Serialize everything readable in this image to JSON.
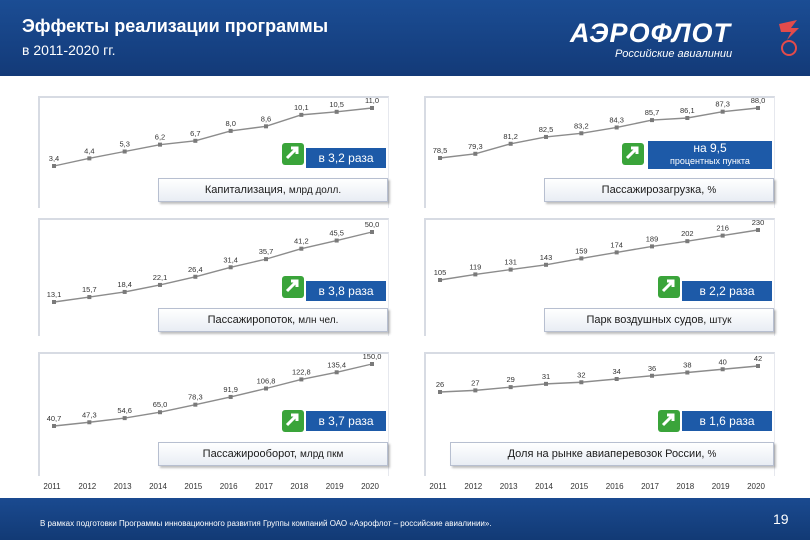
{
  "header": {
    "title": "Эффекты реализации программы",
    "subtitle": "в 2011-2020 гг.",
    "logo_text": "АЭРОФЛОТ",
    "logo_subtext": "Российские авиалинии"
  },
  "colors": {
    "header_bg": "#1b4d94",
    "line": "#8c8c8c",
    "accent": "#1d5aa8",
    "arrow": "#3aa43a"
  },
  "years": [
    "2011",
    "2012",
    "2013",
    "2014",
    "2015",
    "2016",
    "2017",
    "2018",
    "2019",
    "2020"
  ],
  "chart_data": [
    {
      "type": "line",
      "title": "Капитализация",
      "unit": "млрд долл.",
      "x": [
        "2011",
        "2012",
        "2013",
        "2014",
        "2015",
        "2016",
        "2017",
        "2018",
        "2019",
        "2020"
      ],
      "values": [
        3.4,
        4.4,
        5.3,
        6.2,
        6.7,
        8.0,
        8.6,
        10.1,
        10.5,
        11.0
      ],
      "labels": [
        "3,4",
        "4,4",
        "5,3",
        "6,2",
        "6,7",
        "8,0",
        "8,6",
        "10,1",
        "10,5",
        "11,0"
      ],
      "growth": "в 3,2 раза"
    },
    {
      "type": "line",
      "title": "Пассажирозагрузка",
      "unit": "%",
      "x": [
        "2011",
        "2012",
        "2013",
        "2014",
        "2015",
        "2016",
        "2017",
        "2018",
        "2019",
        "2020"
      ],
      "values": [
        78.5,
        79.3,
        81.2,
        82.5,
        83.2,
        84.3,
        85.7,
        86.1,
        87.3,
        88.0
      ],
      "labels": [
        "78,5",
        "79,3",
        "81,2",
        "82,5",
        "83,2",
        "84,3",
        "85,7",
        "86,1",
        "87,3",
        "88,0"
      ],
      "growth": "на 9,5",
      "growth_sub": "процентных пункта"
    },
    {
      "type": "line",
      "title": "Пассажиропоток",
      "unit": "млн чел.",
      "x": [
        "2011",
        "2012",
        "2013",
        "2014",
        "2015",
        "2016",
        "2017",
        "2018",
        "2019",
        "2020"
      ],
      "values": [
        13.1,
        15.7,
        18.4,
        22.1,
        26.4,
        31.4,
        35.7,
        41.2,
        45.5,
        50.0
      ],
      "labels": [
        "13,1",
        "15,7",
        "18,4",
        "22,1",
        "26,4",
        "31,4",
        "35,7",
        "41,2",
        "45,5",
        "50,0"
      ],
      "growth": "в 3,8 раза"
    },
    {
      "type": "line",
      "title": "Парк воздушных судов",
      "unit": "штук",
      "x": [
        "2011",
        "2012",
        "2013",
        "2014",
        "2015",
        "2016",
        "2017",
        "2018",
        "2019",
        "2020"
      ],
      "values": [
        105,
        119,
        131,
        143,
        159,
        174,
        189,
        202,
        216,
        230
      ],
      "labels": [
        "105",
        "119",
        "131",
        "143",
        "159",
        "174",
        "189",
        "202",
        "216",
        "230"
      ],
      "growth": "в 2,2 раза"
    },
    {
      "type": "line",
      "title": "Пассажирооборот",
      "unit": "млрд пкм",
      "x": [
        "2011",
        "2012",
        "2013",
        "2014",
        "2015",
        "2016",
        "2017",
        "2018",
        "2019",
        "2020"
      ],
      "values": [
        40.7,
        47.3,
        54.6,
        65.0,
        78.3,
        91.9,
        106.8,
        122.8,
        135.4,
        150.0
      ],
      "labels": [
        "40,7",
        "47,3",
        "54,6",
        "65,0",
        "78,3",
        "91,9",
        "106,8",
        "122,8",
        "135,4",
        "150,0"
      ],
      "growth": "в 3,7 раза"
    },
    {
      "type": "line",
      "title": "Доля на рынке авиаперевозок России",
      "unit": "%",
      "x": [
        "2011",
        "2012",
        "2013",
        "2014",
        "2015",
        "2016",
        "2017",
        "2018",
        "2019",
        "2020"
      ],
      "values": [
        26,
        27,
        29,
        31,
        32,
        34,
        36,
        38,
        40,
        42
      ],
      "labels": [
        "26",
        "27",
        "29",
        "31",
        "32",
        "34",
        "36",
        "38",
        "40",
        "42"
      ],
      "growth": "в 1,6 раза"
    }
  ],
  "footer": {
    "note": "В рамках подготовки Программы инновационного развития Группы компаний ОАО «Аэрофлот – российские авиалинии».",
    "page": "19"
  }
}
